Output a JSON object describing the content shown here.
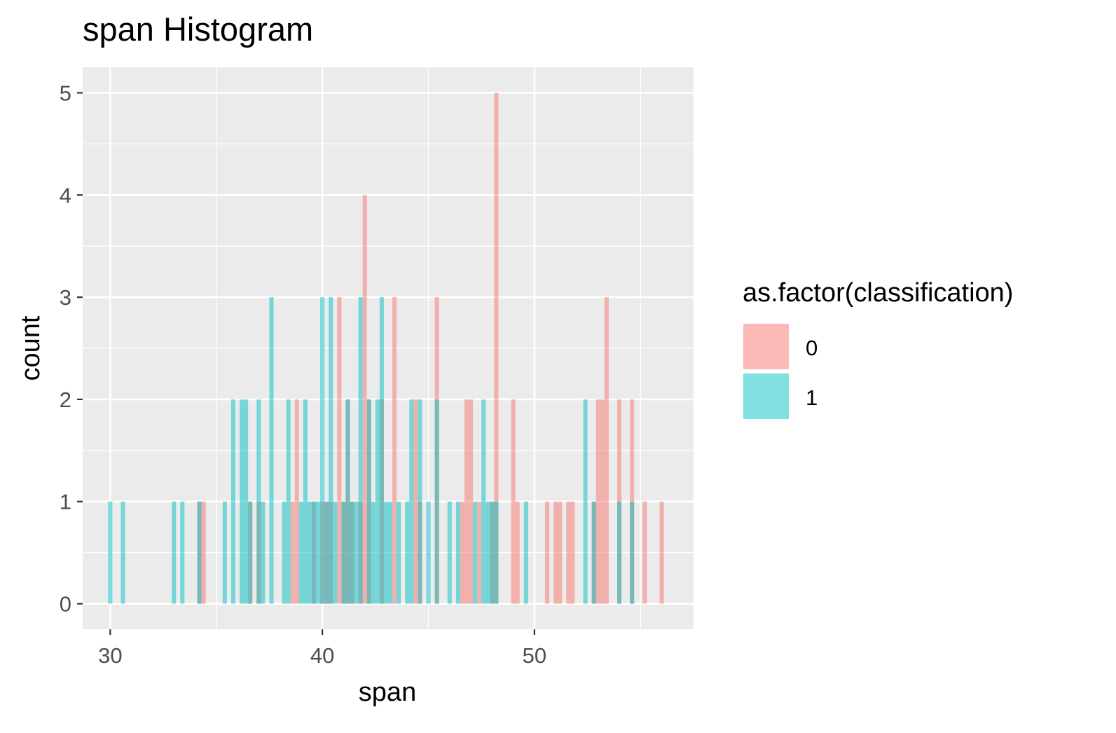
{
  "chart_data": {
    "type": "bar",
    "title": "span Histogram",
    "xlabel": "span",
    "ylabel": "count",
    "xlim": [
      28.7,
      57.5
    ],
    "ylim": [
      -0.25,
      5.25
    ],
    "x_ticks": [
      30,
      40,
      50
    ],
    "y_ticks": [
      0,
      1,
      2,
      3,
      4,
      5
    ],
    "grid": true,
    "bin_width": 0.2,
    "legend": {
      "title": "as.factor(classification)",
      "position": "right",
      "entries": [
        "0",
        "1"
      ]
    },
    "series": [
      {
        "name": "0",
        "color": "#F8766D",
        "x": [
          34.2,
          34.4,
          36.6,
          37.0,
          38.6,
          38.8,
          39.6,
          40.0,
          40.2,
          40.4,
          40.8,
          41.0,
          41.2,
          41.4,
          41.8,
          42.0,
          42.2,
          42.8,
          43.4,
          44.4,
          44.6,
          45.4,
          46.6,
          46.8,
          47.0,
          47.4,
          48.0,
          48.2,
          49.0,
          49.2,
          50.6,
          51.0,
          51.2,
          51.6,
          51.8,
          52.8,
          53.0,
          53.2,
          53.4,
          54.0,
          54.6,
          55.2,
          56.0
        ],
        "values": [
          1,
          1,
          1,
          1,
          1,
          2,
          1,
          1,
          1,
          1,
          3,
          1,
          2,
          1,
          1,
          4,
          2,
          2,
          3,
          2,
          1,
          3,
          1,
          2,
          2,
          1,
          1,
          5,
          2,
          1,
          1,
          1,
          1,
          1,
          1,
          1,
          2,
          2,
          3,
          2,
          2,
          1,
          1
        ]
      },
      {
        "name": "1",
        "color": "#00BFC4",
        "x": [
          30.0,
          30.6,
          33.0,
          33.4,
          34.2,
          35.4,
          35.8,
          36.2,
          36.4,
          36.6,
          37.0,
          37.2,
          37.6,
          38.2,
          38.4,
          39.0,
          39.2,
          39.4,
          39.6,
          39.8,
          40.0,
          40.2,
          40.4,
          40.6,
          41.0,
          41.2,
          41.4,
          41.6,
          41.8,
          42.2,
          42.4,
          42.6,
          42.8,
          43.0,
          43.2,
          43.6,
          44.0,
          44.2,
          44.6,
          45.0,
          45.4,
          46.0,
          46.4,
          47.2,
          47.6,
          47.8,
          48.0,
          48.2,
          49.6,
          52.4,
          52.8,
          54.0,
          54.6
        ],
        "values": [
          1,
          1,
          1,
          1,
          1,
          1,
          2,
          2,
          2,
          1,
          2,
          1,
          3,
          1,
          2,
          1,
          2,
          1,
          1,
          1,
          3,
          1,
          3,
          1,
          1,
          2,
          1,
          1,
          3,
          2,
          1,
          2,
          3,
          1,
          1,
          1,
          1,
          2,
          2,
          1,
          2,
          1,
          1,
          1,
          2,
          1,
          1,
          1,
          1,
          2,
          1,
          1,
          1
        ]
      }
    ]
  }
}
